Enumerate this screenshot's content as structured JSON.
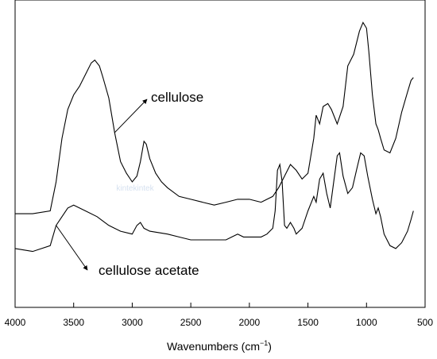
{
  "chart_data": {
    "type": "line",
    "title": "",
    "xlabel": "Wavenumbers (cm",
    "xlabel_sup": "−1",
    "xlabel_close": ")",
    "ylabel": "",
    "xlim": [
      4000,
      500
    ],
    "ylim": [
      0,
      1
    ],
    "x_reversed": true,
    "grid": false,
    "legend": "none",
    "x_ticks": [
      4000,
      3500,
      3000,
      2500,
      2000,
      1500,
      1000,
      500
    ],
    "x_tick_labels": [
      "4000",
      "3500",
      "3000",
      "2500",
      "2000",
      "1500",
      "1000",
      "500"
    ],
    "watermark": "kintekintek",
    "series": [
      {
        "name": "cellulose",
        "color": "#000000",
        "points": [
          [
            4000,
            0.29
          ],
          [
            3850,
            0.29
          ],
          [
            3700,
            0.3
          ],
          [
            3650,
            0.4
          ],
          [
            3600,
            0.55
          ],
          [
            3550,
            0.65
          ],
          [
            3500,
            0.7
          ],
          [
            3450,
            0.73
          ],
          [
            3400,
            0.77
          ],
          [
            3350,
            0.81
          ],
          [
            3320,
            0.82
          ],
          [
            3280,
            0.8
          ],
          [
            3250,
            0.76
          ],
          [
            3200,
            0.69
          ],
          [
            3150,
            0.57
          ],
          [
            3100,
            0.47
          ],
          [
            3050,
            0.43
          ],
          [
            3000,
            0.4
          ],
          [
            2960,
            0.42
          ],
          [
            2930,
            0.47
          ],
          [
            2900,
            0.54
          ],
          [
            2880,
            0.53
          ],
          [
            2850,
            0.48
          ],
          [
            2800,
            0.43
          ],
          [
            2750,
            0.4
          ],
          [
            2700,
            0.38
          ],
          [
            2600,
            0.35
          ],
          [
            2500,
            0.34
          ],
          [
            2400,
            0.33
          ],
          [
            2300,
            0.32
          ],
          [
            2200,
            0.33
          ],
          [
            2100,
            0.34
          ],
          [
            2000,
            0.34
          ],
          [
            1900,
            0.33
          ],
          [
            1800,
            0.35
          ],
          [
            1750,
            0.38
          ],
          [
            1700,
            0.42
          ],
          [
            1650,
            0.46
          ],
          [
            1600,
            0.44
          ],
          [
            1550,
            0.41
          ],
          [
            1500,
            0.43
          ],
          [
            1450,
            0.55
          ],
          [
            1430,
            0.63
          ],
          [
            1400,
            0.6
          ],
          [
            1370,
            0.66
          ],
          [
            1330,
            0.67
          ],
          [
            1300,
            0.65
          ],
          [
            1250,
            0.6
          ],
          [
            1200,
            0.66
          ],
          [
            1160,
            0.8
          ],
          [
            1110,
            0.84
          ],
          [
            1060,
            0.92
          ],
          [
            1030,
            0.95
          ],
          [
            1000,
            0.93
          ],
          [
            980,
            0.85
          ],
          [
            950,
            0.7
          ],
          [
            920,
            0.6
          ],
          [
            900,
            0.58
          ],
          [
            880,
            0.55
          ],
          [
            850,
            0.51
          ],
          [
            800,
            0.5
          ],
          [
            750,
            0.55
          ],
          [
            700,
            0.64
          ],
          [
            650,
            0.71
          ],
          [
            620,
            0.75
          ],
          [
            600,
            0.76
          ]
        ]
      },
      {
        "name": "cellulose acetate",
        "color": "#000000",
        "points": [
          [
            4000,
            0.17
          ],
          [
            3850,
            0.16
          ],
          [
            3700,
            0.18
          ],
          [
            3650,
            0.25
          ],
          [
            3600,
            0.28
          ],
          [
            3550,
            0.31
          ],
          [
            3500,
            0.32
          ],
          [
            3450,
            0.31
          ],
          [
            3400,
            0.3
          ],
          [
            3300,
            0.28
          ],
          [
            3200,
            0.25
          ],
          [
            3100,
            0.23
          ],
          [
            3000,
            0.22
          ],
          [
            2960,
            0.25
          ],
          [
            2930,
            0.26
          ],
          [
            2900,
            0.24
          ],
          [
            2850,
            0.23
          ],
          [
            2700,
            0.22
          ],
          [
            2600,
            0.21
          ],
          [
            2500,
            0.2
          ],
          [
            2400,
            0.2
          ],
          [
            2200,
            0.2
          ],
          [
            2150,
            0.21
          ],
          [
            2100,
            0.22
          ],
          [
            2050,
            0.21
          ],
          [
            2000,
            0.21
          ],
          [
            1900,
            0.21
          ],
          [
            1850,
            0.22
          ],
          [
            1800,
            0.24
          ],
          [
            1780,
            0.3
          ],
          [
            1760,
            0.44
          ],
          [
            1740,
            0.46
          ],
          [
            1720,
            0.4
          ],
          [
            1700,
            0.25
          ],
          [
            1680,
            0.24
          ],
          [
            1650,
            0.26
          ],
          [
            1620,
            0.24
          ],
          [
            1600,
            0.22
          ],
          [
            1550,
            0.24
          ],
          [
            1500,
            0.3
          ],
          [
            1450,
            0.35
          ],
          [
            1430,
            0.33
          ],
          [
            1400,
            0.41
          ],
          [
            1370,
            0.43
          ],
          [
            1340,
            0.36
          ],
          [
            1310,
            0.31
          ],
          [
            1280,
            0.4
          ],
          [
            1250,
            0.49
          ],
          [
            1230,
            0.5
          ],
          [
            1200,
            0.42
          ],
          [
            1160,
            0.36
          ],
          [
            1120,
            0.38
          ],
          [
            1080,
            0.45
          ],
          [
            1050,
            0.5
          ],
          [
            1020,
            0.49
          ],
          [
            990,
            0.42
          ],
          [
            950,
            0.34
          ],
          [
            920,
            0.29
          ],
          [
            900,
            0.31
          ],
          [
            880,
            0.28
          ],
          [
            850,
            0.22
          ],
          [
            800,
            0.18
          ],
          [
            750,
            0.17
          ],
          [
            700,
            0.19
          ],
          [
            650,
            0.23
          ],
          [
            620,
            0.27
          ],
          [
            600,
            0.3
          ]
        ]
      }
    ],
    "annotations": [
      {
        "text": "cellulose",
        "target_series": "cellulose",
        "target_x": 3150
      },
      {
        "text": "cellulose acetate",
        "target_series": "cellulose acetate",
        "target_x": 3650
      }
    ]
  }
}
